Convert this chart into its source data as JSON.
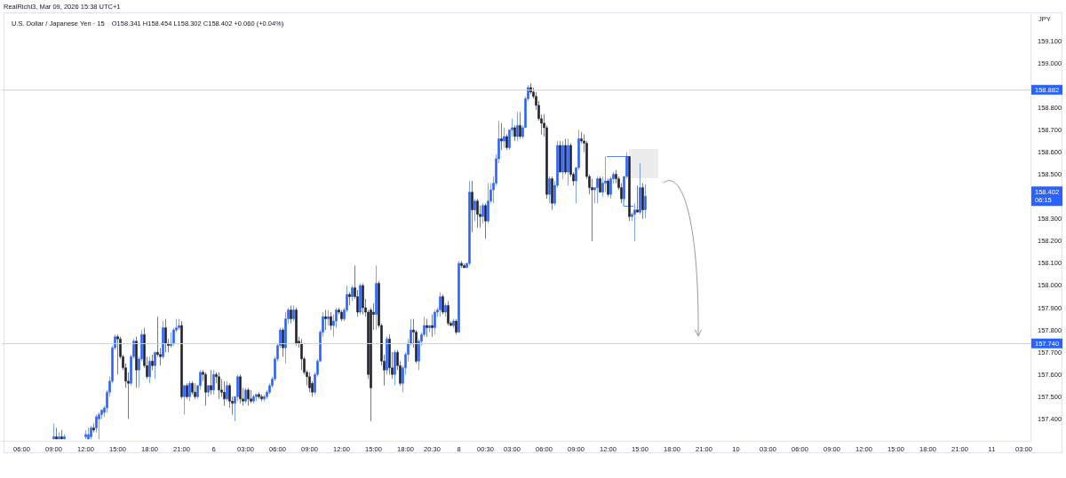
{
  "chart_data": {
    "type": "candlestick",
    "title": "U.S. Dollar / Japanese Yen · 15",
    "subtitle": "O158.341 H158.454 L158.302 C158.402 +0.060 (+0.04%)",
    "ylabel": "JPY",
    "annotations": [
      "RealRichi3, Mar 09, 2026 15:38 UTC+1",
      {
        "text": "158.402\n06:15",
        "y": 158.402
      }
    ],
    "categories": [
      null,
      null,
      null,
      null,
      null,
      null,
      null,
      "06:00",
      null,
      null,
      null,
      null,
      null,
      null,
      null,
      null,
      null,
      null,
      null,
      "09:00",
      null,
      null,
      null,
      null,
      null,
      null,
      null,
      null,
      null,
      null,
      null,
      "12:00",
      null,
      null,
      null,
      null,
      null,
      null,
      null,
      null,
      null,
      null,
      null,
      "15:00",
      null,
      null,
      null,
      null,
      null,
      null,
      null,
      null,
      null,
      null,
      null,
      "18:00",
      null,
      null,
      null,
      null,
      null,
      null,
      null,
      null,
      null,
      null,
      null,
      "21:00",
      null,
      null,
      null,
      null,
      null,
      null,
      null,
      null,
      null,
      null,
      null,
      "6",
      null,
      null,
      null,
      null,
      null,
      null,
      null,
      null,
      null,
      null,
      null,
      "03:00",
      null,
      null,
      null,
      null,
      null,
      null,
      null,
      null,
      null,
      null,
      null,
      "06:00",
      null,
      null,
      null,
      null,
      null,
      null,
      null,
      null,
      null,
      null,
      null,
      "09:00",
      null,
      null,
      null,
      null,
      null,
      null,
      null,
      null,
      null,
      null,
      null,
      "12:00",
      null,
      null,
      null,
      null,
      null,
      null,
      null,
      null,
      null,
      null,
      null,
      "15:00",
      null,
      null,
      null,
      null,
      null,
      null,
      null,
      null,
      null,
      null,
      null,
      "18:00",
      null,
      null,
      null,
      null,
      null,
      null,
      null,
      null,
      null,
      "20:30",
      null,
      null,
      null,
      null,
      null,
      null,
      null,
      null,
      null,
      "8",
      null,
      null,
      null,
      null,
      null,
      null,
      null,
      null,
      null,
      "00:30",
      null,
      null,
      null,
      null,
      null,
      null,
      null,
      null,
      null,
      "03:00",
      null,
      null,
      null,
      null,
      null,
      null,
      null,
      null,
      null,
      null,
      null,
      "06:00",
      null,
      null,
      null,
      null,
      null,
      null,
      null,
      null,
      null,
      null,
      null,
      "09:00",
      null,
      null,
      null,
      null,
      null,
      null,
      null,
      null,
      null,
      null,
      null,
      "12:00",
      null,
      null,
      null,
      null,
      null,
      null,
      null,
      null,
      null,
      null,
      null,
      "15:00",
      null,
      null,
      null,
      null,
      null,
      null,
      null,
      null,
      null,
      null,
      null,
      "18:00",
      null,
      null,
      null,
      null,
      null,
      null,
      null,
      null,
      null,
      null,
      null,
      "21:00",
      null,
      null,
      null,
      null,
      null,
      null,
      null,
      null,
      null,
      null,
      null,
      "10",
      null,
      null,
      null,
      null,
      null,
      null,
      null,
      null,
      null,
      null,
      null,
      "03:00",
      null,
      null,
      null,
      null,
      null,
      null,
      null,
      null,
      null,
      null,
      null,
      "06:00",
      null,
      null,
      null,
      null,
      null,
      null,
      null,
      null,
      null,
      null,
      null,
      "09:00",
      null,
      null,
      null,
      null,
      null,
      null,
      null,
      null,
      null,
      null,
      null,
      "12:00",
      null,
      null,
      null,
      null,
      null,
      null,
      null,
      null,
      null,
      null,
      null,
      "15:00",
      null,
      null,
      null,
      null,
      null,
      null,
      null,
      null,
      null,
      null,
      null,
      "18:00",
      null,
      null,
      null,
      null,
      null,
      null,
      null,
      null,
      null,
      null,
      null,
      "21:00",
      null,
      null,
      null,
      null,
      null,
      null,
      null,
      null,
      null,
      null,
      null,
      "11",
      null,
      null,
      null,
      null,
      null,
      null,
      null,
      null,
      null,
      null,
      null,
      "03:00",
      null,
      null
    ],
    "ohlc": [
      null,
      null,
      null,
      null,
      null,
      null,
      null,
      null,
      null,
      null,
      null,
      null,
      null,
      null,
      null,
      null,
      null,
      null,
      null,
      [
        157.31,
        157.38,
        157.31,
        157.32
      ],
      [
        157.32,
        157.36,
        157.31,
        157.31
      ],
      [
        157.31,
        157.34,
        157.31,
        157.32
      ],
      [
        157.32,
        157.35,
        157.31,
        157.31
      ],
      [
        157.31,
        157.33,
        157.31,
        157.32
      ],
      null,
      null,
      null,
      null,
      null,
      null,
      null,
      [
        157.32,
        157.35,
        157.31,
        157.33
      ],
      [
        157.31,
        157.36,
        157.31,
        157.33
      ],
      [
        157.32,
        157.37,
        157.31,
        157.36
      ],
      [
        157.36,
        157.38,
        157.34,
        157.35
      ],
      [
        157.36,
        157.42,
        157.34,
        157.41
      ],
      [
        157.4,
        157.43,
        157.31,
        157.42
      ],
      [
        157.42,
        157.44,
        157.4,
        157.44
      ],
      [
        157.43,
        157.46,
        157.41,
        157.45
      ],
      [
        157.45,
        157.53,
        157.43,
        157.52
      ],
      [
        157.52,
        157.59,
        157.5,
        157.57
      ],
      [
        157.57,
        157.73,
        157.56,
        157.72
      ],
      [
        157.72,
        157.78,
        157.71,
        157.77
      ],
      [
        157.77,
        157.78,
        157.6,
        157.76
      ],
      [
        157.76,
        157.77,
        157.67,
        157.68
      ],
      [
        157.68,
        157.69,
        157.62,
        157.63
      ],
      [
        157.63,
        157.65,
        157.54,
        157.57
      ],
      [
        157.57,
        157.61,
        157.4,
        157.56
      ],
      [
        157.56,
        157.69,
        157.55,
        157.68
      ],
      [
        157.68,
        157.76,
        157.67,
        157.75
      ],
      [
        157.75,
        157.77,
        157.54,
        157.62
      ],
      [
        157.62,
        157.68,
        157.54,
        157.67
      ],
      [
        157.67,
        157.8,
        157.66,
        157.78
      ],
      [
        157.78,
        157.81,
        157.63,
        157.64
      ],
      [
        157.64,
        157.68,
        157.58,
        157.59
      ],
      [
        157.59,
        157.68,
        157.56,
        157.66
      ],
      [
        157.66,
        157.69,
        157.62,
        157.64
      ],
      [
        157.64,
        157.7,
        157.58,
        157.7
      ],
      [
        157.7,
        157.86,
        157.68,
        157.69
      ],
      [
        157.69,
        157.72,
        157.64,
        157.68
      ],
      [
        157.68,
        157.84,
        157.67,
        157.81
      ],
      [
        157.81,
        157.85,
        157.7,
        157.74
      ],
      [
        157.74,
        157.76,
        157.7,
        157.73
      ],
      [
        157.73,
        157.79,
        157.72,
        157.74
      ],
      [
        157.74,
        157.81,
        157.73,
        157.8
      ],
      [
        157.8,
        157.85,
        157.79,
        157.81
      ],
      [
        157.81,
        157.85,
        157.8,
        157.82
      ],
      [
        157.82,
        157.84,
        157.49,
        157.5
      ],
      [
        157.5,
        157.55,
        157.42,
        157.55
      ],
      [
        157.55,
        157.56,
        157.49,
        157.5
      ],
      [
        157.5,
        157.57,
        157.48,
        157.56
      ],
      [
        157.56,
        157.57,
        157.51,
        157.52
      ],
      [
        157.52,
        157.56,
        157.49,
        157.5
      ],
      [
        157.5,
        157.55,
        157.49,
        157.55
      ],
      [
        157.55,
        157.62,
        157.53,
        157.61
      ],
      [
        157.61,
        157.62,
        157.57,
        157.6
      ],
      [
        157.6,
        157.61,
        157.46,
        157.52
      ],
      [
        157.52,
        157.55,
        157.5,
        157.55
      ],
      [
        157.55,
        157.62,
        157.51,
        157.53
      ],
      [
        157.53,
        157.62,
        157.51,
        157.6
      ],
      [
        157.6,
        157.61,
        157.56,
        157.59
      ],
      [
        157.59,
        157.61,
        157.49,
        157.53
      ],
      [
        157.53,
        157.58,
        157.5,
        157.52
      ],
      [
        157.52,
        157.57,
        157.46,
        157.49
      ],
      [
        157.49,
        157.57,
        157.48,
        157.55
      ],
      [
        157.55,
        157.56,
        157.45,
        157.48
      ],
      [
        157.48,
        157.5,
        157.42,
        157.47
      ],
      [
        157.47,
        157.5,
        157.39,
        157.5
      ],
      [
        157.5,
        157.6,
        157.48,
        157.59
      ],
      [
        157.59,
        157.6,
        157.47,
        157.49
      ],
      [
        157.49,
        157.54,
        157.46,
        157.48
      ],
      [
        157.48,
        157.54,
        157.47,
        157.53
      ],
      [
        157.53,
        157.54,
        157.46,
        157.49
      ],
      [
        157.49,
        157.53,
        157.47,
        157.48
      ],
      [
        157.48,
        157.51,
        157.47,
        157.5
      ],
      [
        157.5,
        157.51,
        157.48,
        157.51
      ],
      [
        157.51,
        157.52,
        157.49,
        157.5
      ],
      [
        157.5,
        157.51,
        157.48,
        157.49
      ],
      [
        157.49,
        157.51,
        157.48,
        157.5
      ],
      [
        157.5,
        157.53,
        157.49,
        157.52
      ],
      [
        157.52,
        157.56,
        157.51,
        157.55
      ],
      [
        157.55,
        157.59,
        157.54,
        157.58
      ],
      [
        157.58,
        157.68,
        157.57,
        157.67
      ],
      [
        157.67,
        157.74,
        157.66,
        157.73
      ],
      [
        157.73,
        157.81,
        157.72,
        157.8
      ],
      [
        157.8,
        157.81,
        157.68,
        157.72
      ],
      [
        157.72,
        157.88,
        157.65,
        157.85
      ],
      [
        157.85,
        157.9,
        157.83,
        157.89
      ],
      [
        157.89,
        157.91,
        157.83,
        157.85
      ],
      [
        157.85,
        157.91,
        157.84,
        157.89
      ],
      [
        157.89,
        157.9,
        157.73,
        157.74
      ],
      [
        157.75,
        157.77,
        157.72,
        157.74
      ],
      [
        157.74,
        157.76,
        157.62,
        157.67
      ],
      [
        157.67,
        157.68,
        157.6,
        157.61
      ],
      [
        157.61,
        157.62,
        157.55,
        157.59
      ],
      [
        157.59,
        157.61,
        157.52,
        157.54
      ],
      [
        157.56,
        157.57,
        157.5,
        157.52
      ],
      [
        157.52,
        157.61,
        157.51,
        157.6
      ],
      [
        157.6,
        157.67,
        157.59,
        157.66
      ],
      [
        157.66,
        157.8,
        157.66,
        157.79
      ],
      [
        157.79,
        157.88,
        157.77,
        157.86
      ],
      [
        157.86,
        157.89,
        157.8,
        157.85
      ],
      [
        157.85,
        157.89,
        157.82,
        157.86
      ],
      [
        157.86,
        157.88,
        157.8,
        157.82
      ],
      [
        157.82,
        157.87,
        157.77,
        157.84
      ],
      [
        157.84,
        157.9,
        157.81,
        157.89
      ],
      [
        157.89,
        157.9,
        157.87,
        157.88
      ],
      [
        157.88,
        157.89,
        157.84,
        157.85
      ],
      [
        157.85,
        157.9,
        157.84,
        157.89
      ],
      [
        157.89,
        158.0,
        157.88,
        157.96
      ],
      [
        157.96,
        157.97,
        157.91,
        157.95
      ],
      [
        157.95,
        158.0,
        157.93,
        157.99
      ],
      [
        157.99,
        158.09,
        157.94,
        157.95
      ],
      [
        157.95,
        157.98,
        157.86,
        157.88
      ],
      [
        157.88,
        158.01,
        157.87,
        158.0
      ],
      [
        158.0,
        158.01,
        157.87,
        157.9
      ],
      [
        157.9,
        157.94,
        157.86,
        157.88
      ],
      [
        157.88,
        157.89,
        157.58,
        157.6
      ],
      [
        157.89,
        157.9,
        157.39,
        157.54
      ],
      [
        157.88,
        157.92,
        157.8,
        157.87
      ],
      [
        157.87,
        158.09,
        157.8,
        158.01
      ],
      [
        158.01,
        158.02,
        157.81,
        157.82
      ],
      [
        157.82,
        157.83,
        157.64,
        157.66
      ],
      [
        157.66,
        157.69,
        157.55,
        157.62
      ],
      [
        157.62,
        157.77,
        157.6,
        157.76
      ],
      [
        157.76,
        157.78,
        157.6,
        157.63
      ],
      [
        157.63,
        157.7,
        157.58,
        157.6
      ],
      [
        157.6,
        157.71,
        157.55,
        157.7
      ],
      [
        157.7,
        157.71,
        157.62,
        157.64
      ],
      [
        157.64,
        157.66,
        157.55,
        157.56
      ],
      [
        157.56,
        157.64,
        157.52,
        157.63
      ],
      [
        157.63,
        157.7,
        157.6,
        157.69
      ],
      [
        157.69,
        157.76,
        157.66,
        157.74
      ],
      [
        157.74,
        157.85,
        157.73,
        157.8
      ],
      [
        157.8,
        157.85,
        157.72,
        157.79
      ],
      [
        157.79,
        157.8,
        157.65,
        157.66
      ],
      [
        157.66,
        157.76,
        157.62,
        157.75
      ],
      [
        157.75,
        157.79,
        157.73,
        157.78
      ],
      [
        157.78,
        157.86,
        157.77,
        157.82
      ],
      [
        157.82,
        157.85,
        157.77,
        157.81
      ],
      [
        157.81,
        157.82,
        157.79,
        157.82
      ],
      [
        157.82,
        157.87,
        157.77,
        157.81
      ],
      [
        157.81,
        157.89,
        157.78,
        157.88
      ],
      [
        157.88,
        157.9,
        157.86,
        157.89
      ],
      [
        157.89,
        157.97,
        157.86,
        157.95
      ],
      [
        157.95,
        157.96,
        157.87,
        157.88
      ],
      [
        157.88,
        157.92,
        157.86,
        157.91
      ],
      [
        157.91,
        157.93,
        157.82,
        157.83
      ],
      [
        157.83,
        157.84,
        157.82,
        157.82
      ],
      [
        157.82,
        157.85,
        157.81,
        157.84
      ],
      [
        157.84,
        157.85,
        157.78,
        157.79
      ],
      [
        157.79,
        158.11,
        157.79,
        158.1
      ],
      [
        158.1,
        158.11,
        158.08,
        158.09
      ],
      [
        158.09,
        158.1,
        158.08,
        158.08
      ],
      [
        158.08,
        158.1,
        158.08,
        158.1
      ],
      [
        158.1,
        158.47,
        158.09,
        158.42
      ],
      [
        158.42,
        158.47,
        158.24,
        158.34
      ],
      [
        158.34,
        158.39,
        158.29,
        158.38
      ],
      [
        158.38,
        158.39,
        158.26,
        158.32
      ],
      [
        158.32,
        158.36,
        158.26,
        158.31
      ],
      [
        158.31,
        158.37,
        158.28,
        158.36
      ],
      [
        158.36,
        158.37,
        158.21,
        158.29
      ],
      [
        158.29,
        158.46,
        158.28,
        158.38
      ],
      [
        158.38,
        158.46,
        158.37,
        158.43
      ],
      [
        158.43,
        158.49,
        158.37,
        158.46
      ],
      [
        158.46,
        158.59,
        158.45,
        158.57
      ],
      [
        158.57,
        158.74,
        158.55,
        158.66
      ],
      [
        158.66,
        158.73,
        158.61,
        158.65
      ],
      [
        158.65,
        158.71,
        158.62,
        158.67
      ],
      [
        158.67,
        158.68,
        158.61,
        158.62
      ],
      [
        158.62,
        158.7,
        158.61,
        158.7
      ],
      [
        158.7,
        158.75,
        158.67,
        158.71
      ],
      [
        158.71,
        158.72,
        158.65,
        158.67
      ],
      [
        158.67,
        158.78,
        158.65,
        158.72
      ],
      [
        158.72,
        158.78,
        158.66,
        158.67
      ],
      [
        158.67,
        158.72,
        158.66,
        158.71
      ],
      [
        158.71,
        158.85,
        158.71,
        158.84
      ],
      [
        158.84,
        158.9,
        158.83,
        158.89
      ],
      [
        158.89,
        158.91,
        158.86,
        158.87
      ],
      [
        158.87,
        158.89,
        158.84,
        158.85
      ],
      [
        158.85,
        158.87,
        158.79,
        158.81
      ],
      [
        158.81,
        158.83,
        158.74,
        158.75
      ],
      [
        158.75,
        158.77,
        158.68,
        158.73
      ],
      [
        158.73,
        158.77,
        158.67,
        158.71
      ],
      [
        158.71,
        158.72,
        158.39,
        158.41
      ],
      [
        158.41,
        158.49,
        158.37,
        158.48
      ],
      [
        158.48,
        158.49,
        158.34,
        158.37
      ],
      [
        158.37,
        158.47,
        158.36,
        158.45
      ],
      [
        158.45,
        158.65,
        158.44,
        158.63
      ],
      [
        158.63,
        158.65,
        158.51,
        158.51
      ],
      [
        158.51,
        158.65,
        158.48,
        158.63
      ],
      [
        158.63,
        158.66,
        158.5,
        158.51
      ],
      [
        158.51,
        158.66,
        158.45,
        158.63
      ],
      [
        158.63,
        158.64,
        158.49,
        158.5
      ],
      [
        158.5,
        158.51,
        158.45,
        158.47
      ],
      [
        158.47,
        158.53,
        158.37,
        158.53
      ],
      [
        158.53,
        158.7,
        158.52,
        158.66
      ],
      [
        158.66,
        158.69,
        158.64,
        158.65
      ],
      [
        158.65,
        158.68,
        158.6,
        158.64
      ],
      [
        158.64,
        158.65,
        158.48,
        158.49
      ],
      [
        158.49,
        158.5,
        158.41,
        158.44
      ],
      [
        158.44,
        158.48,
        158.2,
        158.43
      ],
      [
        158.43,
        158.44,
        158.37,
        158.44
      ],
      [
        158.44,
        158.49,
        158.37,
        158.48
      ],
      [
        158.48,
        158.49,
        158.42,
        158.42
      ],
      [
        158.42,
        158.49,
        158.4,
        158.46
      ],
      [
        158.46,
        158.58,
        158.42,
        158.47
      ],
      [
        158.47,
        158.48,
        158.4,
        158.41
      ],
      [
        158.41,
        158.49,
        158.39,
        158.48
      ],
      [
        158.48,
        158.51,
        158.46,
        158.5
      ],
      [
        158.5,
        158.52,
        158.46,
        158.48
      ],
      [
        158.48,
        158.49,
        158.43,
        158.44
      ],
      [
        158.44,
        158.46,
        158.37,
        158.39
      ],
      [
        158.39,
        158.49,
        158.38,
        158.49
      ],
      [
        158.49,
        158.6,
        158.48,
        158.58
      ],
      [
        158.58,
        158.58,
        158.29,
        158.31
      ],
      [
        158.31,
        158.33,
        158.29,
        158.32
      ],
      [
        158.32,
        158.37,
        158.2,
        158.34
      ],
      [
        158.34,
        158.45,
        158.33,
        158.33
      ],
      [
        158.33,
        158.55,
        158.32,
        158.44
      ],
      [
        158.44,
        158.46,
        158.3,
        158.34
      ],
      [
        158.341,
        158.454,
        158.302,
        158.402
      ],
      null,
      null,
      null,
      null,
      null,
      null,
      null,
      null,
      null,
      null,
      null,
      null,
      null,
      null,
      null,
      null,
      null,
      null,
      null,
      null,
      null,
      null,
      null,
      null,
      null,
      null,
      null,
      null,
      null,
      null,
      null,
      null,
      null,
      null,
      null,
      null,
      null,
      null,
      null,
      null,
      null,
      null,
      null,
      null,
      null,
      null,
      null,
      null,
      null,
      null,
      null,
      null,
      null,
      null,
      null,
      null,
      null,
      null,
      null,
      null,
      null,
      null,
      null,
      null,
      null,
      null,
      null,
      null,
      null,
      null,
      null,
      null,
      null,
      null,
      null,
      null,
      null,
      null,
      null,
      null,
      null,
      null,
      null,
      null,
      null,
      null,
      null,
      null,
      null,
      null,
      null,
      null,
      null,
      null,
      null,
      null,
      null,
      null,
      null,
      null,
      null,
      null,
      null,
      null,
      null,
      null,
      null,
      null,
      null,
      null,
      null,
      null,
      null,
      null,
      null,
      null,
      null,
      null,
      null,
      null,
      null,
      null,
      null,
      null,
      null,
      null,
      null,
      null,
      null,
      null,
      null,
      null,
      null,
      null,
      null,
      null,
      null,
      null,
      null,
      null,
      null,
      null,
      null,
      null
    ],
    "colors": [
      null,
      null,
      null,
      null,
      null,
      null,
      null,
      null,
      null,
      null,
      null,
      null,
      null,
      null,
      null,
      null,
      null,
      null,
      null,
      "#2962ff",
      "#1e222d",
      "#2962ff",
      "#1e222d",
      "#2962ff",
      null,
      null,
      null,
      null,
      null,
      null,
      null,
      "#2962ff",
      "#2962ff",
      "#2962ff",
      "#1e222d",
      "#2962ff",
      "#2962ff",
      "#2962ff",
      "#2962ff",
      "#2962ff",
      "#2962ff",
      "#2962ff",
      "#2962ff",
      "#1e222d",
      "#1e222d",
      "#1e222d",
      "#1e222d",
      "#1e222d",
      "#2962ff",
      "#2962ff",
      "#1e222d",
      "#2962ff",
      "#2962ff",
      "#1e222d",
      "#1e222d",
      "#2962ff",
      "#1e222d",
      "#2962ff",
      "#1e222d",
      "#1e222d",
      "#2962ff",
      "#1e222d",
      "#1e222d",
      "#2962ff",
      "#2962ff",
      "#2962ff",
      "#2962ff",
      "#1e222d",
      "#2962ff",
      "#1e222d",
      "#2962ff",
      "#1e222d",
      "#1e222d",
      "#2962ff",
      "#2962ff",
      "#1e222d",
      "#1e222d",
      "#2962ff",
      "#1e222d",
      "#2962ff",
      "#1e222d",
      "#1e222d",
      "#1e222d",
      "#1e222d",
      "#2962ff",
      "#1e222d",
      "#1e222d",
      "#2962ff",
      "#2962ff",
      "#1e222d",
      "#1e222d",
      "#2962ff",
      "#1e222d",
      "#1e222d",
      "#2962ff",
      "#2962ff",
      "#1e222d",
      "#1e222d",
      "#2962ff",
      "#2962ff",
      "#2962ff",
      "#2962ff",
      "#2962ff",
      "#2962ff",
      "#2962ff",
      "#1e222d",
      "#2962ff",
      "#2962ff",
      "#1e222d",
      "#2962ff",
      "#1e222d",
      "#1e222d",
      "#1e222d",
      "#1e222d",
      "#1e222d",
      "#1e222d",
      "#1e222d",
      "#2962ff",
      "#2962ff",
      "#2962ff",
      "#2962ff",
      "#1e222d",
      "#2962ff",
      "#1e222d",
      "#2962ff",
      "#2962ff",
      "#1e222d",
      "#1e222d",
      "#2962ff",
      "#2962ff",
      "#1e222d",
      "#2962ff",
      "#1e222d",
      "#1e222d",
      "#2962ff",
      "#1e222d",
      "#1e222d",
      "#1e222d",
      "#1e222d",
      "#1e222d",
      "#2962ff",
      "#1e222d",
      "#1e222d",
      "#1e222d",
      "#2962ff",
      "#1e222d",
      "#1e222d",
      "#2962ff",
      "#1e222d",
      "#1e222d",
      "#2962ff",
      "#2962ff",
      "#2962ff",
      "#2962ff",
      "#1e222d",
      "#1e222d",
      "#2962ff",
      "#2962ff",
      "#2962ff",
      "#1e222d",
      "#2962ff",
      "#1e222d",
      "#2962ff",
      "#2962ff",
      "#2962ff",
      "#1e222d",
      "#2962ff",
      "#1e222d",
      "#1e222d",
      "#2962ff",
      "#1e222d",
      "#2962ff",
      "#1e222d",
      "#1e222d",
      "#2962ff",
      "#2962ff",
      "#1e222d",
      "#2962ff",
      "#1e222d",
      "#1e222d",
      "#2962ff",
      "#1e222d",
      "#2962ff",
      "#2962ff",
      "#2962ff",
      "#2962ff",
      "#2962ff",
      "#1e222d",
      "#2962ff",
      "#1e222d",
      "#2962ff",
      "#2962ff",
      "#1e222d",
      "#2962ff",
      "#1e222d",
      "#2962ff",
      "#2962ff",
      "#2962ff",
      "#1e222d",
      "#1e222d",
      "#1e222d",
      "#1e222d",
      "#1e222d",
      "#1e222d",
      "#1e222d",
      "#2962ff",
      "#1e222d",
      "#2962ff",
      "#2962ff",
      "#1e222d",
      "#2962ff",
      "#1e222d",
      "#2962ff",
      "#1e222d",
      "#1e222d",
      "#2962ff",
      "#2962ff",
      "#1e222d",
      "#1e222d",
      "#1e222d",
      "#1e222d",
      "#1e222d",
      "#2962ff",
      "#2962ff",
      "#1e222d",
      "#2962ff",
      "#2962ff",
      "#1e222d",
      "#2962ff",
      "#2962ff",
      "#1e222d",
      "#1e222d",
      "#1e222d",
      "#2962ff",
      "#2962ff",
      "#1e222d",
      "#2962ff",
      "#2962ff",
      "#1e222d",
      "#2962ff",
      "#1e222d",
      "#2962ff",
      null,
      null,
      null,
      null,
      null,
      null,
      null,
      null,
      null,
      null,
      null,
      null,
      null,
      null,
      null,
      null,
      null,
      null,
      null,
      null,
      null,
      null,
      null,
      null,
      null,
      null,
      null,
      null,
      null,
      null,
      null,
      null,
      null,
      null,
      null,
      null,
      null,
      null,
      null,
      null,
      null,
      null,
      null,
      null,
      null,
      null,
      null,
      null,
      null,
      null,
      null,
      null,
      null,
      null,
      null,
      null,
      null,
      null,
      null,
      null,
      null,
      null,
      null,
      null,
      null,
      null,
      null,
      null,
      null,
      null,
      null,
      null,
      null,
      null,
      null,
      null,
      null,
      null,
      null,
      null,
      null,
      null,
      null,
      null,
      null,
      null,
      null,
      null,
      null,
      null,
      null,
      null,
      null,
      null,
      null,
      null,
      null,
      null,
      null,
      null,
      null,
      null,
      null,
      null,
      null,
      null,
      null,
      null,
      null,
      null,
      null,
      null,
      null,
      null,
      null,
      null,
      null,
      null,
      null,
      null,
      null,
      null,
      null,
      null,
      null,
      null,
      null,
      null,
      null,
      null,
      null,
      null,
      null,
      null,
      null,
      null,
      null,
      null,
      null,
      null,
      null,
      null,
      null,
      null
    ],
    "ylim": [
      157.3,
      159.22
    ],
    "yticks": [
      {
        "value": 157.4,
        "label": "157.400"
      },
      {
        "value": 157.5,
        "label": "157.500"
      },
      {
        "value": 157.6,
        "label": "157.600"
      },
      {
        "value": 157.7,
        "label": "157.700"
      },
      {
        "value": 157.8,
        "label": "157.800"
      },
      {
        "value": 157.9,
        "label": "157.900"
      },
      {
        "value": 158.0,
        "label": "158.000"
      },
      {
        "value": 158.1,
        "label": "158.100"
      },
      {
        "value": 158.2,
        "label": "158.200"
      },
      {
        "value": 158.3,
        "label": "158.300"
      },
      {
        "value": 158.5,
        "label": "158.500"
      },
      {
        "value": 158.6,
        "label": "158.600"
      },
      {
        "value": 158.7,
        "label": "158.700"
      },
      {
        "value": 158.8,
        "label": "158.800"
      },
      {
        "value": 159.0,
        "label": "159.000"
      },
      {
        "value": 159.1,
        "label": "159.100"
      }
    ],
    "ref_lines": [
      {
        "axis": "y",
        "value": 158.882,
        "label": "158.882",
        "color": "#c3d1fb"
      },
      {
        "axis": "y",
        "value": 157.74,
        "label": "157.740",
        "color": "#c3d1fb"
      }
    ]
  }
}
